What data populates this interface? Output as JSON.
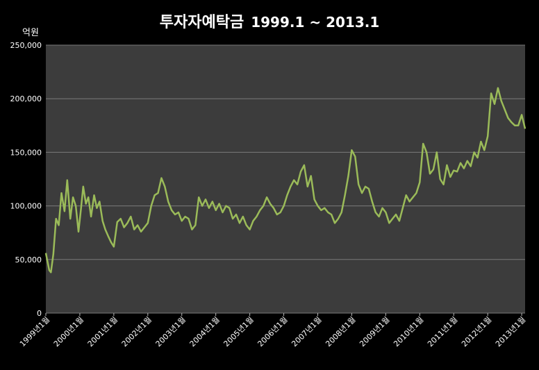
{
  "chart_data": {
    "type": "line",
    "title": "투자자예탁금",
    "subtitle": "1999.1 ~ 2013.1",
    "ylabel": "억원",
    "ylim": [
      0,
      250000
    ],
    "yticks": [
      0,
      50000,
      100000,
      150000,
      200000,
      250000
    ],
    "ytick_labels": [
      "0",
      "50,000",
      "100,000",
      "150,000",
      "200,000",
      "250,000"
    ],
    "xlim": [
      1999.0,
      2013.1
    ],
    "xticks": [
      1999.0,
      2000.0,
      2001.0,
      2002.0,
      2003.0,
      2004.0,
      2005.0,
      2006.0,
      2007.0,
      2008.0,
      2009.0,
      2010.0,
      2011.0,
      2012.0,
      2013.0
    ],
    "xtick_labels": [
      "1999년1월",
      "2000년1월",
      "2001년1월",
      "2002년1월",
      "2003년1월",
      "2004년1월",
      "2005년1월",
      "2006년1월",
      "2007년1월",
      "2008년1월",
      "2009년1월",
      "2010년1월",
      "2011년1월",
      "2012년1월",
      "2013년1월"
    ],
    "grid": true,
    "colors": {
      "background": "#3c3c3c",
      "line": "#9bbb59",
      "grid": "#7a7a7a"
    },
    "series": [
      {
        "x": [
          1999.0,
          1999.05,
          1999.1,
          1999.15,
          1999.22,
          1999.3,
          1999.38,
          1999.46,
          1999.55,
          1999.63,
          1999.72,
          1999.8,
          1999.88,
          1999.96,
          2000.03,
          2000.1,
          2000.18,
          2000.25,
          2000.33,
          2000.42,
          2000.5,
          2000.58,
          2000.67,
          2000.75,
          2000.83,
          2000.92,
          2001.0,
          2001.1,
          2001.2,
          2001.3,
          2001.4,
          2001.5,
          2001.6,
          2001.7,
          2001.8,
          2001.9,
          2002.0,
          2002.1,
          2002.2,
          2002.3,
          2002.4,
          2002.5,
          2002.6,
          2002.7,
          2002.8,
          2002.9,
          2003.0,
          2003.1,
          2003.2,
          2003.3,
          2003.4,
          2003.5,
          2003.6,
          2003.7,
          2003.8,
          2003.9,
          2004.0,
          2004.1,
          2004.2,
          2004.3,
          2004.4,
          2004.5,
          2004.6,
          2004.7,
          2004.8,
          2004.9,
          2005.0,
          2005.1,
          2005.2,
          2005.3,
          2005.4,
          2005.5,
          2005.6,
          2005.7,
          2005.8,
          2005.9,
          2006.0,
          2006.1,
          2006.2,
          2006.3,
          2006.4,
          2006.5,
          2006.6,
          2006.7,
          2006.8,
          2006.9,
          2007.0,
          2007.1,
          2007.2,
          2007.3,
          2007.4,
          2007.5,
          2007.6,
          2007.7,
          2007.8,
          2007.9,
          2008.0,
          2008.1,
          2008.2,
          2008.3,
          2008.4,
          2008.5,
          2008.6,
          2008.7,
          2008.8,
          2008.9,
          2009.0,
          2009.1,
          2009.2,
          2009.3,
          2009.4,
          2009.5,
          2009.6,
          2009.7,
          2009.8,
          2009.9,
          2010.0,
          2010.1,
          2010.2,
          2010.3,
          2010.4,
          2010.5,
          2010.6,
          2010.7,
          2010.8,
          2010.9,
          2011.0,
          2011.1,
          2011.2,
          2011.3,
          2011.4,
          2011.5,
          2011.6,
          2011.7,
          2011.8,
          2011.9,
          2012.0,
          2012.1,
          2012.2,
          2012.3,
          2012.4,
          2012.5,
          2012.6,
          2012.7,
          2012.8,
          2012.9,
          2013.0,
          2013.1
        ],
        "values": [
          56000,
          48000,
          40000,
          38000,
          55000,
          88000,
          82000,
          112000,
          95000,
          124000,
          88000,
          108000,
          100000,
          76000,
          96000,
          118000,
          102000,
          108000,
          90000,
          110000,
          98000,
          104000,
          86000,
          78000,
          72000,
          66000,
          62000,
          85000,
          88000,
          80000,
          84000,
          90000,
          78000,
          82000,
          76000,
          80000,
          84000,
          100000,
          110000,
          112000,
          126000,
          118000,
          104000,
          96000,
          92000,
          94000,
          86000,
          90000,
          88000,
          78000,
          82000,
          108000,
          100000,
          106000,
          98000,
          104000,
          96000,
          102000,
          94000,
          100000,
          98000,
          88000,
          92000,
          84000,
          90000,
          82000,
          78000,
          86000,
          90000,
          96000,
          100000,
          108000,
          102000,
          98000,
          92000,
          94000,
          100000,
          110000,
          118000,
          124000,
          120000,
          132000,
          138000,
          118000,
          128000,
          106000,
          100000,
          96000,
          98000,
          94000,
          92000,
          84000,
          88000,
          94000,
          110000,
          128000,
          152000,
          146000,
          120000,
          112000,
          118000,
          116000,
          104000,
          94000,
          90000,
          98000,
          94000,
          84000,
          88000,
          92000,
          86000,
          98000,
          110000,
          104000,
          108000,
          112000,
          122000,
          158000,
          150000,
          130000,
          134000,
          150000,
          125000,
          120000,
          138000,
          127000,
          133000,
          132000,
          140000,
          135000,
          142000,
          137000,
          150000,
          145000,
          160000,
          152000,
          165000,
          205000,
          195000,
          210000,
          198000,
          190000,
          182000,
          178000,
          175000,
          175000,
          185000,
          172000
        ]
      }
    ]
  }
}
